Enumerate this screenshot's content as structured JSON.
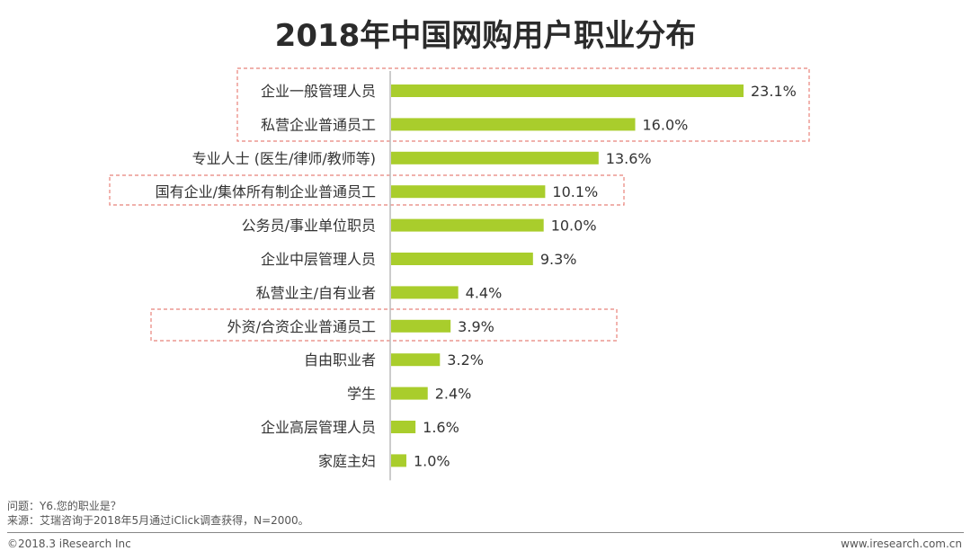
{
  "chart_data": {
    "type": "bar",
    "orientation": "horizontal",
    "title": "2018年中国网购用户职业分布",
    "categories": [
      "企业一般管理人员",
      "私营企业普通员工",
      "专业人士 (医生/律师/教师等)",
      "国有企业/集体所有制企业普通员工",
      "公务员/事业单位职员",
      "企业中层管理人员",
      "私营业主/自有业者",
      "外资/合资企业普通员工",
      "自由职业者",
      "学生",
      "企业高层管理人员",
      "家庭主妇"
    ],
    "values": [
      23.1,
      16.0,
      13.6,
      10.1,
      10.0,
      9.3,
      4.4,
      3.9,
      3.2,
      2.4,
      1.6,
      1.0
    ],
    "value_labels": [
      "23.1%",
      "16.0%",
      "13.6%",
      "10.1%",
      "10.0%",
      "9.3%",
      "4.4%",
      "3.9%",
      "3.2%",
      "2.4%",
      "1.6%",
      "1.0%"
    ],
    "unit": "%",
    "xlim": [
      0,
      25
    ],
    "highlighted_groups": [
      [
        0,
        1
      ],
      [
        3
      ],
      [
        7
      ]
    ],
    "colors": {
      "bar": "#a9cd2c",
      "highlight_border": "#e8827a",
      "axis": "#bbbbbb"
    }
  },
  "notes": {
    "question": "问题：Y6.您的职业是？",
    "source": "来源：艾瑞咨询于2018年5月通过iClick调查获得，N=2000。"
  },
  "footer": {
    "copyright": "©2018.3 iResearch Inc",
    "website": "www.iresearch.com.cn"
  }
}
